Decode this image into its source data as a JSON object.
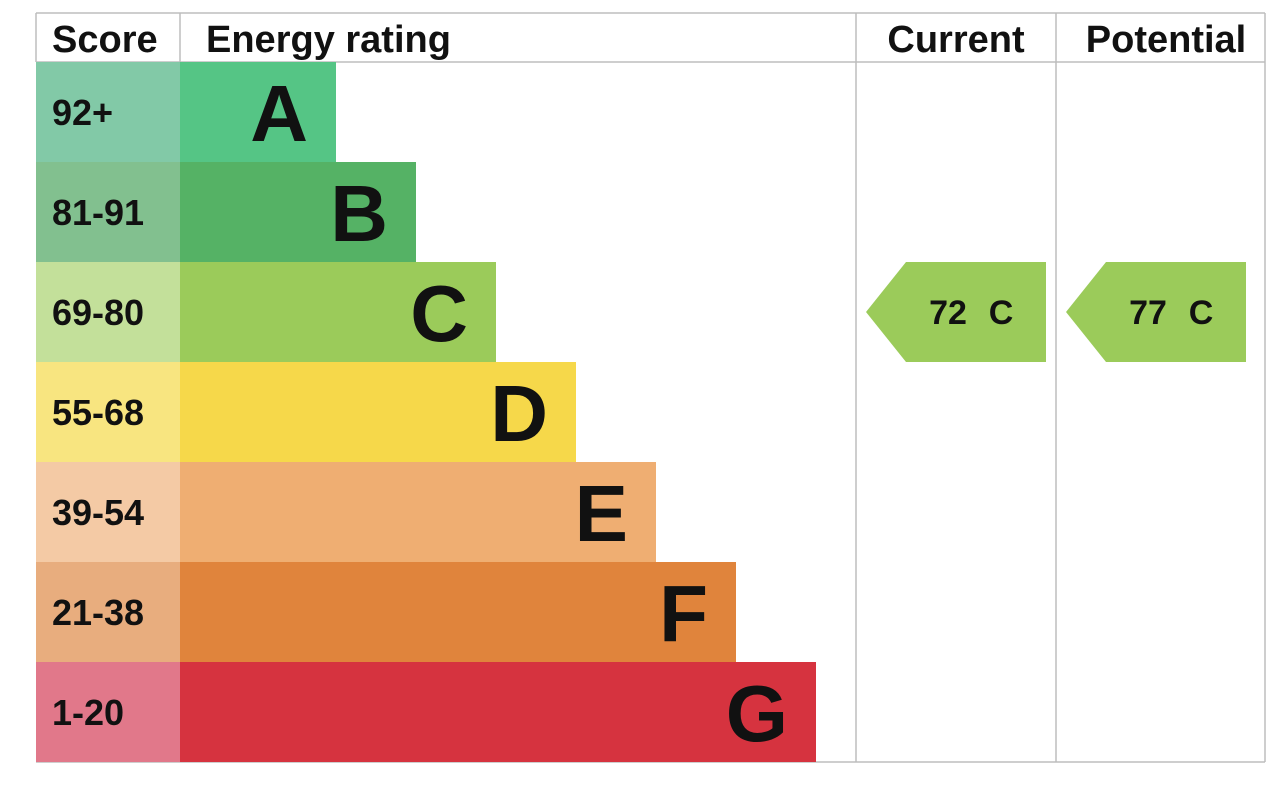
{
  "headers": {
    "score": "Score",
    "energy_rating": "Energy rating",
    "current": "Current",
    "potential": "Potential"
  },
  "chart_data": {
    "type": "bar",
    "bands": [
      {
        "letter": "A",
        "range": "92+",
        "bar_color": "#55c585",
        "score_color": "#82c9a7"
      },
      {
        "letter": "B",
        "range": "81-91",
        "bar_color": "#55b265",
        "score_color": "#82c08f"
      },
      {
        "letter": "C",
        "range": "69-80",
        "bar_color": "#9bcb5a",
        "score_color": "#c3e09a"
      },
      {
        "letter": "D",
        "range": "55-68",
        "bar_color": "#f6d84a",
        "score_color": "#f8e580"
      },
      {
        "letter": "E",
        "range": "39-54",
        "bar_color": "#efae72",
        "score_color": "#f4caa5"
      },
      {
        "letter": "F",
        "range": "21-38",
        "bar_color": "#e0843c",
        "score_color": "#e8ad7e"
      },
      {
        "letter": "G",
        "range": "1-20",
        "bar_color": "#d6333f",
        "score_color": "#e1788a"
      }
    ],
    "current": {
      "score": "72",
      "rating": "C",
      "color": "#9bcb5a"
    },
    "potential": {
      "score": "77",
      "rating": "C",
      "color": "#9bcb5a"
    }
  }
}
